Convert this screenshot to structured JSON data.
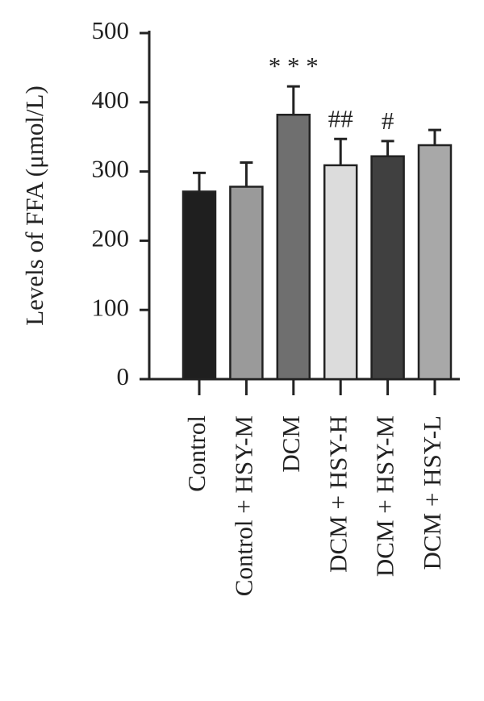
{
  "chart_data": {
    "type": "bar",
    "y_label": "Levels of FFA (μmol/L)",
    "categories": [
      "Control",
      "Control + HSY-M",
      "DCM",
      "DCM + HSY-H",
      "DCM + HSY-M",
      "DCM + HSY-L"
    ],
    "values": [
      271,
      278,
      382,
      309,
      322,
      338
    ],
    "errors": [
      27,
      35,
      41,
      38,
      22,
      22
    ],
    "colors": [
      "#1f1f1f",
      "#9a9a9a",
      "#6f6f6f",
      "#dcdcdc",
      "#404040",
      "#a8a8a8"
    ],
    "annotations": [
      {
        "category": "DCM",
        "text": "* * *"
      },
      {
        "category": "DCM + HSY-H",
        "text": "##"
      },
      {
        "category": "DCM + HSY-M",
        "text": "#"
      }
    ],
    "ylim": [
      0,
      500
    ],
    "yticks": [
      0,
      100,
      200,
      300,
      400,
      500
    ]
  }
}
